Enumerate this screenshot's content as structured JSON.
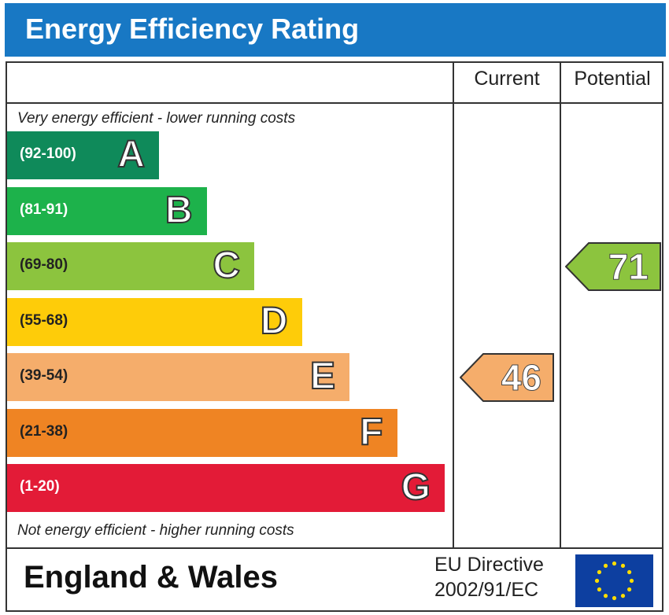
{
  "header": {
    "title": "Energy Efficiency Rating"
  },
  "columns": {
    "current": "Current",
    "potential": "Potential"
  },
  "notes": {
    "top": "Very energy efficient - lower running costs",
    "bottom": "Not energy efficient - higher running costs"
  },
  "footer": {
    "region": "England & Wales",
    "directive_line1": "EU Directive",
    "directive_line2": "2002/91/EC",
    "flag_icon": "eu-flag-icon"
  },
  "chart_data": {
    "type": "bar",
    "title": "Energy Efficiency Rating",
    "categories": [
      "A",
      "B",
      "C",
      "D",
      "E",
      "F",
      "G"
    ],
    "ranges": [
      "(92-100)",
      "(81-91)",
      "(69-80)",
      "(55-68)",
      "(39-54)",
      "(21-38)",
      "(1-20)"
    ],
    "colors": [
      "#0f8a5a",
      "#1db24b",
      "#8cc43e",
      "#fecc09",
      "#f5ad6b",
      "#ef8423",
      "#e31b37"
    ],
    "range_text_colors": [
      "#ffffff",
      "#ffffff",
      "#222222",
      "#222222",
      "#222222",
      "#222222",
      "#ffffff"
    ],
    "current": {
      "value": 46,
      "band": "E",
      "color": "#f5ad6b"
    },
    "potential": {
      "value": 71,
      "band": "C",
      "color": "#8cc43e"
    }
  }
}
